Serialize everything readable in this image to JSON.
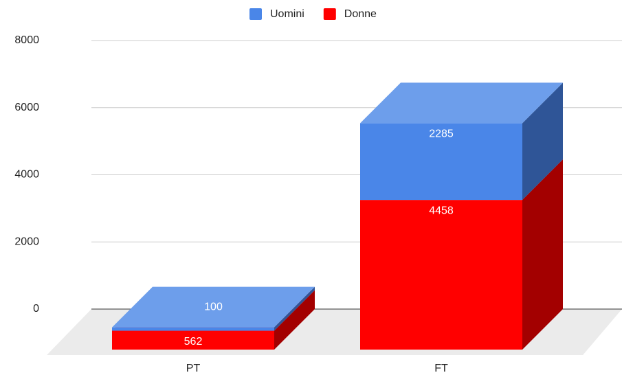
{
  "chart_data": {
    "type": "bar3d_stacked",
    "categories": [
      "PT",
      "FT"
    ],
    "series": [
      {
        "name": "Uomini",
        "color": "#4a86e8",
        "top_color": "#6d9eeb",
        "side_color": "#2f5597",
        "values": [
          100,
          2285
        ]
      },
      {
        "name": "Donne",
        "color": "#ff0000",
        "top_color": "#ff4d4d",
        "side_color": "#a30000",
        "values": [
          562,
          4458
        ]
      }
    ],
    "ylim": [
      0,
      8000
    ],
    "yticks": [
      0,
      2000,
      4000,
      6000,
      8000
    ],
    "grid": true,
    "legend": "top"
  }
}
